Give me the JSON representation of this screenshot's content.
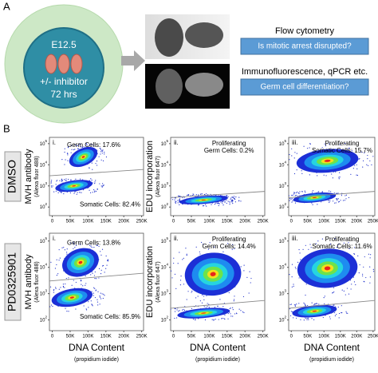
{
  "panel_a": {
    "label": "A",
    "embryo": {
      "stage": "E12.5",
      "treatment": "+/- inhibitor",
      "duration": "72 hrs"
    },
    "assays": [
      {
        "method": "Flow cytometry",
        "question": "Is mitotic arrest disrupted?"
      },
      {
        "method": "Immunofluorescence, qPCR etc.",
        "question": "Germ cell differentiation?"
      }
    ]
  },
  "panel_b": {
    "label": "B",
    "x_axis": {
      "title": "DNA Content",
      "subtitle": "(propidium iodide)",
      "ticks": [
        "0",
        "50K",
        "100K",
        "150K",
        "200K",
        "250K"
      ]
    },
    "y_ticks": [
      {
        "base": "10",
        "exp": "5"
      },
      {
        "base": "10",
        "exp": "4"
      },
      {
        "base": "10",
        "exp": "3"
      },
      {
        "base": "10",
        "exp": "2"
      }
    ],
    "columns": [
      {
        "numeral": "i.",
        "y_title": "MVH antibody",
        "y_subtitle": "(Alexa fluor 488)"
      },
      {
        "numeral": "ii.",
        "y_title": "EDU incorporation",
        "y_subtitle": "(Alexa fluor 647)"
      },
      {
        "numeral": "iii."
      }
    ],
    "rows": [
      {
        "condition": "DMSO",
        "plots": [
          {
            "annotations": [
              [
                "Germ Cells: 17.6%"
              ],
              [
                "Somatic Cells: 82.4%"
              ]
            ]
          },
          {
            "annotations": [
              [
                "Proliferating",
                "Germ Cells: 0.2%"
              ]
            ]
          },
          {
            "annotations": [
              [
                "Proliferating",
                "Somatic Cells: 15.7%"
              ]
            ]
          }
        ]
      },
      {
        "condition": "PD0325901",
        "plots": [
          {
            "annotations": [
              [
                "Germ Cells: 13.8%"
              ],
              [
                "Somatic Cells: 85.9%"
              ]
            ]
          },
          {
            "annotations": [
              [
                "Proliferating",
                "Germ Cells: 14.4%"
              ]
            ]
          },
          {
            "annotations": [
              [
                "Proliferating",
                "Somatic Cells: 11.6%"
              ]
            ]
          }
        ]
      }
    ]
  }
}
